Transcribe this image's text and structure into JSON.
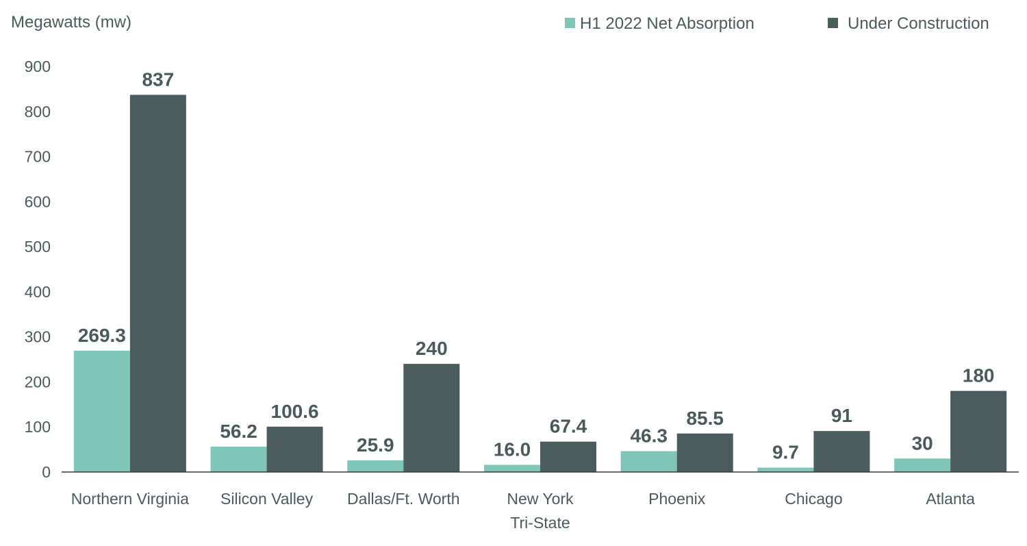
{
  "chart_data": {
    "type": "bar",
    "title": "",
    "ylabel": "Megawatts (mw)",
    "xlabel": "",
    "ylim": [
      0,
      900
    ],
    "yticks": [
      0,
      100,
      200,
      300,
      400,
      500,
      600,
      700,
      800,
      900
    ],
    "grid": false,
    "legend_position": "top-right",
    "categories": [
      [
        "Northern Virginia"
      ],
      [
        "Silicon Valley"
      ],
      [
        "Dallas/Ft. Worth"
      ],
      [
        "New York",
        "Tri-State"
      ],
      [
        "Phoenix"
      ],
      [
        "Chicago"
      ],
      [
        "Atlanta"
      ]
    ],
    "series": [
      {
        "name": "H1 2022 Net Absorption",
        "color": "#7fc6b8",
        "values": [
          269.3,
          56.2,
          25.9,
          16.0,
          46.3,
          9.7,
          30
        ],
        "labels": [
          "269.3",
          "56.2",
          "25.9",
          "16.0",
          "46.3",
          "9.7",
          "30"
        ]
      },
      {
        "name": "Under Construction",
        "color": "#4a5c5e",
        "values": [
          837,
          100.6,
          240,
          67.4,
          85.5,
          91,
          180
        ],
        "labels": [
          "837",
          "100.6",
          "240",
          "67.4",
          "85.5",
          "91",
          "180"
        ]
      }
    ]
  }
}
